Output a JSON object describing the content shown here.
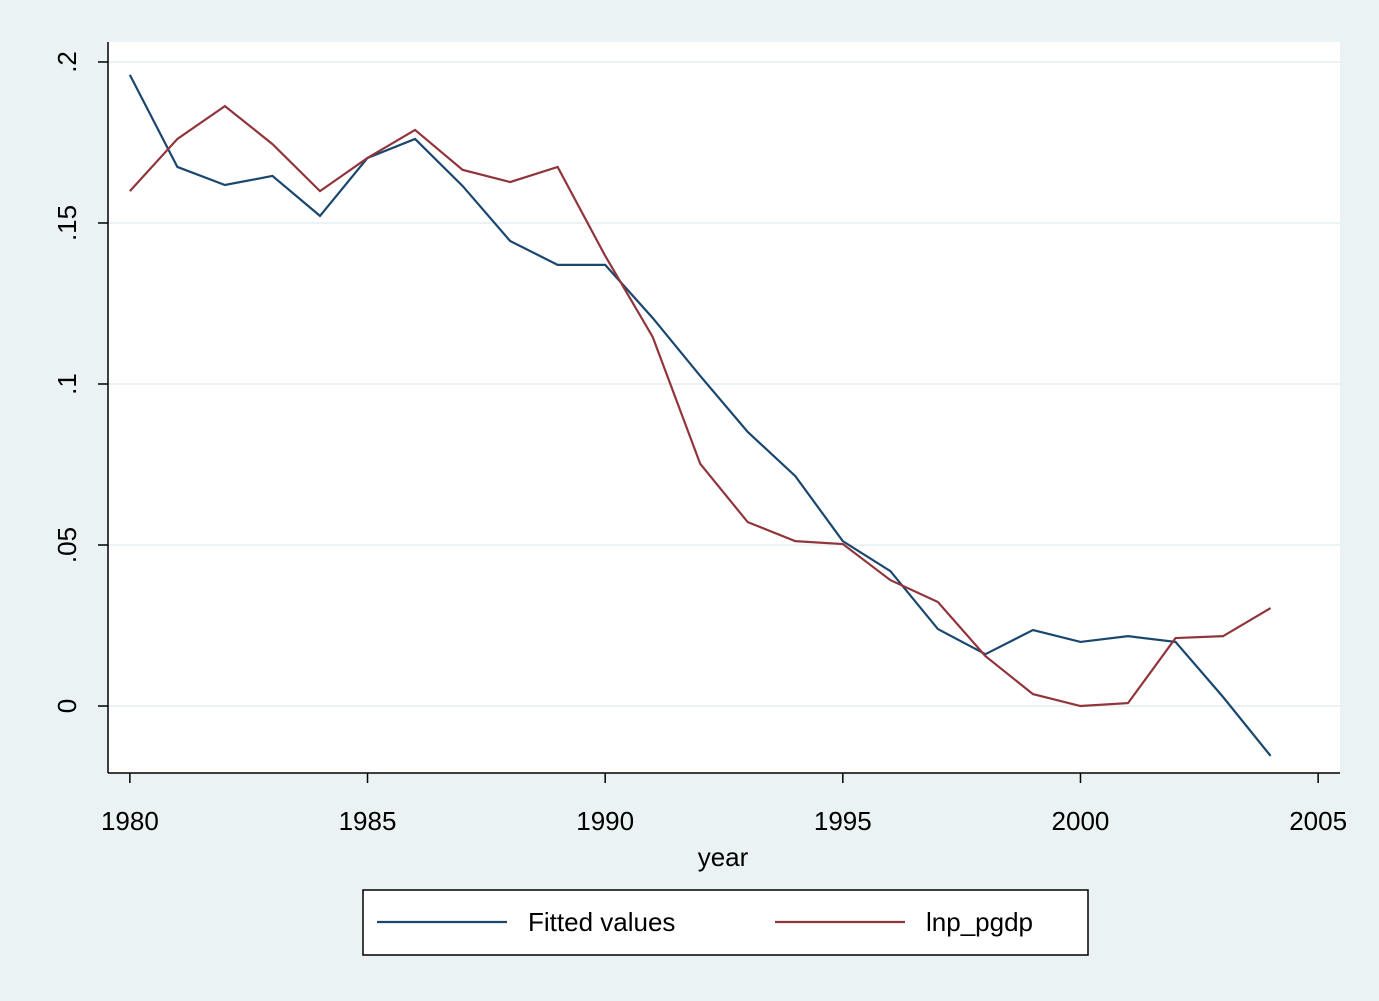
{
  "chart_data": {
    "type": "line",
    "x": [
      1980,
      1981,
      1982,
      1983,
      1984,
      1985,
      1986,
      1987,
      1988,
      1989,
      1990,
      1991,
      1992,
      1993,
      1994,
      1995,
      1996,
      1997,
      1998,
      1999,
      2000,
      2001,
      2002,
      2003,
      2004
    ],
    "series": [
      {
        "name": "Fitted values",
        "color": "#1a476f",
        "values": [
          0.196,
          0.1674,
          0.1618,
          0.1646,
          0.1522,
          0.1702,
          0.1761,
          0.1615,
          0.1444,
          0.137,
          0.137,
          0.1205,
          0.1025,
          0.0851,
          0.0714,
          0.0512,
          0.0419,
          0.0239,
          0.0161,
          0.0236,
          0.0199,
          0.0217,
          0.0199,
          0.0028,
          -0.0155
        ]
      },
      {
        "name": "lnp_pgdp",
        "color": "#90353b",
        "values": [
          0.1599,
          0.1761,
          0.1863,
          0.1745,
          0.1599,
          0.1702,
          0.1789,
          0.1665,
          0.1627,
          0.1674,
          0.1398,
          0.1146,
          0.0752,
          0.0571,
          0.0512,
          0.0503,
          0.0391,
          0.0323,
          0.0155,
          0.0037,
          0,
          0.0009,
          0.0211,
          0.0217,
          0.0304
        ]
      }
    ],
    "x_label": "year",
    "xlim": [
      1979.54,
      2005.46
    ],
    "xticks": [
      1980,
      1985,
      1990,
      1995,
      2000,
      2005
    ],
    "ylim": [
      -0.0208,
      0.2062
    ],
    "yticks": [
      0,
      {
        "value": 0.05,
        "label": ".05"
      },
      {
        "value": 0.1,
        "label": ".1"
      },
      {
        "value": 0.15,
        "label": ".15"
      },
      {
        "value": 0.2,
        "label": ".2"
      }
    ],
    "grid": true
  }
}
